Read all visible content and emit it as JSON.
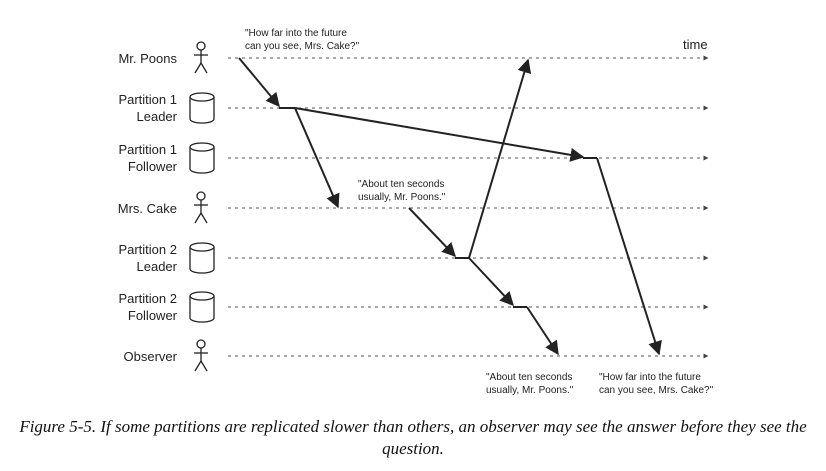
{
  "time_label": "time",
  "lanes": [
    {
      "id": "mr-poons",
      "lines": [
        "Mr. Poons"
      ],
      "icon": "person-icon"
    },
    {
      "id": "partition-1-leader",
      "lines": [
        "Partition 1",
        "Leader"
      ],
      "icon": "database-icon"
    },
    {
      "id": "partition-1-follower",
      "lines": [
        "Partition 1",
        "Follower"
      ],
      "icon": "database-icon"
    },
    {
      "id": "mrs-cake",
      "lines": [
        "Mrs. Cake"
      ],
      "icon": "person-icon"
    },
    {
      "id": "partition-2-leader",
      "lines": [
        "Partition 2",
        "Leader"
      ],
      "icon": "database-icon"
    },
    {
      "id": "partition-2-follower",
      "lines": [
        "Partition 2",
        "Follower"
      ],
      "icon": "database-icon"
    },
    {
      "id": "observer",
      "lines": [
        "Observer"
      ],
      "icon": "person-icon"
    }
  ],
  "notes": {
    "question_top": [
      "\"How far into the future",
      "can you see, Mrs. Cake?\""
    ],
    "answer_mid": [
      "\"About ten seconds",
      "usually, Mr. Poons.\""
    ],
    "answer_bottom": [
      "\"About ten seconds",
      "usually, Mr. Poons.\""
    ],
    "question_bottom": [
      "\"How far into the future",
      "can you see, Mrs. Cake?\""
    ]
  },
  "caption": "Figure 5-5. If some partitions are replicated slower than others, an observer may see the answer before they see the question."
}
